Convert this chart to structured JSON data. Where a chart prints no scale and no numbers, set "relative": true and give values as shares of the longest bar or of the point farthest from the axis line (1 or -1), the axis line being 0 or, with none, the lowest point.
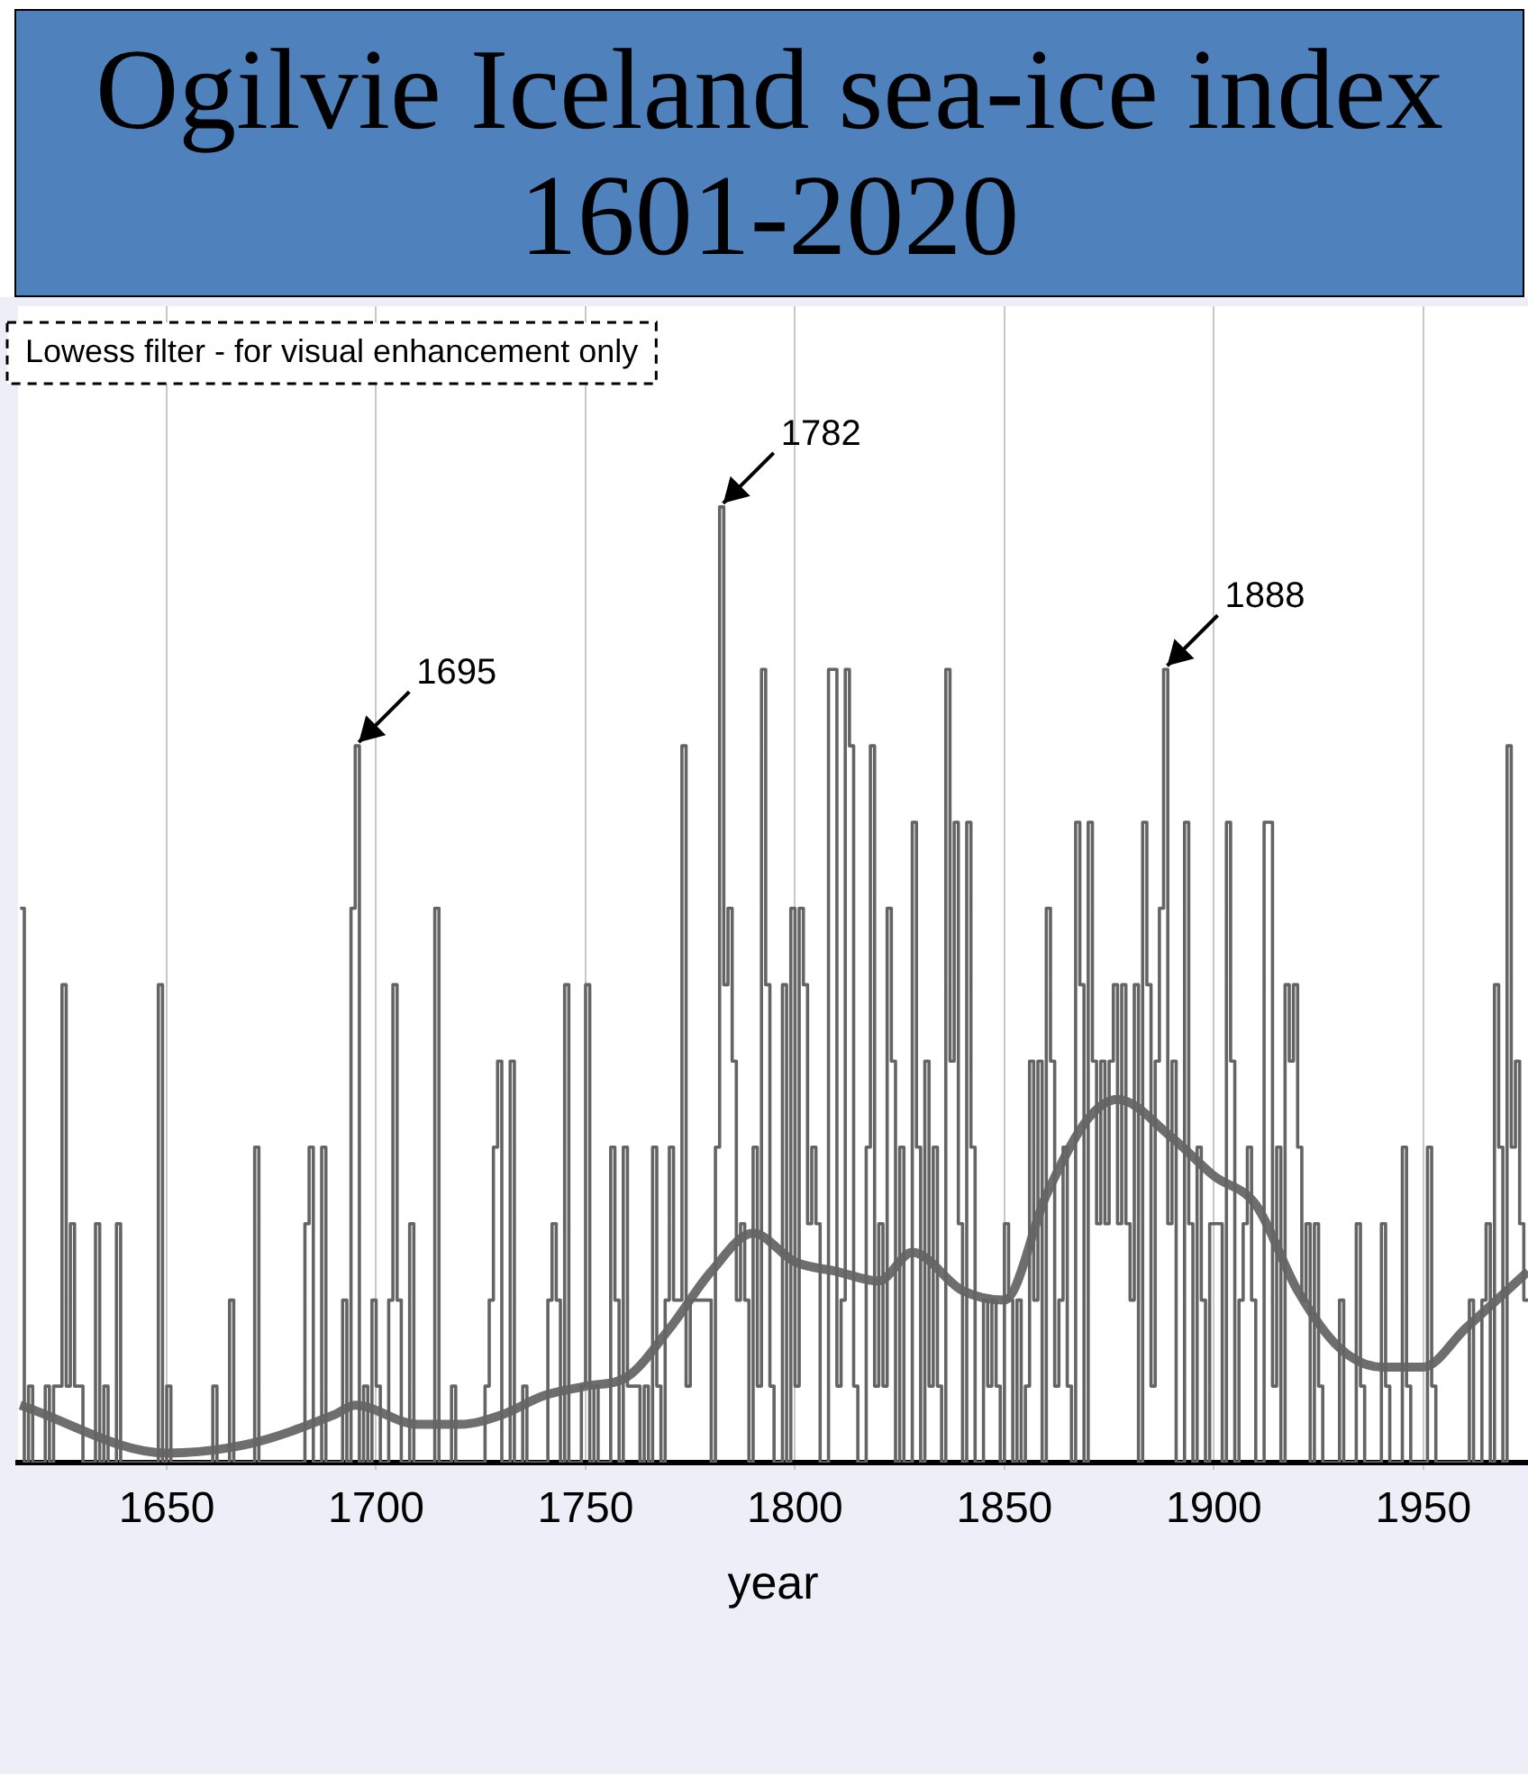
{
  "chart_data": {
    "type": "step",
    "title": "Ogilvie Iceland sea-ice index 1601-2020",
    "xlabel": "year",
    "relative": true,
    "xlim": [
      1614.5,
      1975
    ],
    "xticks": [
      1650,
      1700,
      1750,
      1800,
      1850,
      1900,
      1950
    ],
    "grid": "x",
    "tick_labels": "x",
    "marker": "none",
    "annotations": [
      "Lowess filter - for visual enhancement only",
      {
        "text": "1695",
        "x": 1695,
        "y": 0.75
      },
      {
        "text": "1782",
        "x": 1782,
        "y": 1
      },
      {
        "text": "1888",
        "x": 1888,
        "y": 0.83
      }
    ],
    "series": [
      {
        "color": "#646464",
        "x": [
          1615,
          1616,
          1617,
          1618,
          1621,
          1622,
          1623,
          1625,
          1626,
          1627,
          1628,
          1630,
          1633,
          1634,
          1635,
          1636,
          1638,
          1639,
          1648,
          1649,
          1650,
          1651,
          1661,
          1662,
          1665,
          1666,
          1671,
          1672,
          1683,
          1684,
          1685,
          1687,
          1688,
          1692,
          1693,
          1694,
          1695,
          1696,
          1697,
          1698,
          1699,
          1700,
          1701,
          1703,
          1704,
          1705,
          1706,
          1708,
          1709,
          1714,
          1715,
          1718,
          1719,
          1726,
          1727,
          1728,
          1729,
          1730,
          1732,
          1733,
          1735,
          1736,
          1741,
          1742,
          1743,
          1744,
          1745,
          1746,
          1749,
          1750,
          1751,
          1752,
          1753,
          1756,
          1757,
          1758,
          1759,
          1760,
          1763,
          1764,
          1765,
          1766,
          1767,
          1768,
          1769,
          1770,
          1771,
          1773,
          1774,
          1775,
          1780,
          1781,
          1782,
          1783,
          1784,
          1785,
          1786,
          1787,
          1788,
          1789,
          1790,
          1791,
          1792,
          1793,
          1794,
          1795,
          1797,
          1798,
          1799,
          1800,
          1801,
          1802,
          1803,
          1804,
          1805,
          1806,
          1808,
          1810,
          1811,
          1812,
          1813,
          1814,
          1815,
          1817,
          1818,
          1819,
          1820,
          1821,
          1822,
          1823,
          1824,
          1825,
          1826,
          1828,
          1829,
          1830,
          1831,
          1832,
          1833,
          1834,
          1835,
          1836,
          1837,
          1838,
          1839,
          1840,
          1841,
          1842,
          1843,
          1845,
          1846,
          1847,
          1848,
          1849,
          1850,
          1851,
          1852,
          1853,
          1854,
          1855,
          1856,
          1857,
          1858,
          1859,
          1860,
          1861,
          1862,
          1863,
          1864,
          1865,
          1866,
          1867,
          1868,
          1869,
          1870,
          1871,
          1872,
          1873,
          1874,
          1875,
          1876,
          1877,
          1878,
          1879,
          1880,
          1881,
          1882,
          1883,
          1884,
          1885,
          1886,
          1887,
          1888,
          1889,
          1890,
          1891,
          1893,
          1894,
          1895,
          1896,
          1897,
          1898,
          1899,
          1902,
          1903,
          1904,
          1905,
          1906,
          1907,
          1908,
          1909,
          1910,
          1912,
          1914,
          1915,
          1916,
          1917,
          1918,
          1919,
          1920,
          1921,
          1922,
          1923,
          1924,
          1925,
          1926,
          1930,
          1931,
          1934,
          1935,
          1936,
          1940,
          1941,
          1942,
          1945,
          1946,
          1947,
          1951,
          1952,
          1953,
          1961,
          1962,
          1964,
          1965,
          1966,
          1967,
          1968,
          1969,
          1970,
          1971,
          1972,
          1973,
          1974,
          1975
        ],
        "values": [
          0.58,
          0,
          0.08,
          0,
          0.08,
          0,
          0.08,
          0.5,
          0.08,
          0.25,
          0.08,
          0,
          0.25,
          0,
          0.08,
          0,
          0.25,
          0,
          0.5,
          0,
          0.08,
          0,
          0.08,
          0,
          0.17,
          0,
          0.33,
          0,
          0.25,
          0.33,
          0,
          0.33,
          0,
          0.17,
          0,
          0.58,
          0.75,
          0,
          0.08,
          0,
          0.17,
          0.08,
          0,
          0.17,
          0.5,
          0.17,
          0,
          0.25,
          0,
          0.58,
          0,
          0.08,
          0,
          0.08,
          0.17,
          0.33,
          0.42,
          0,
          0.42,
          0,
          0.08,
          0,
          0.17,
          0.25,
          0.17,
          0,
          0.5,
          0,
          0.08,
          0.5,
          0,
          0.08,
          0,
          0.33,
          0.17,
          0,
          0.33,
          0.08,
          0,
          0.08,
          0,
          0.33,
          0.08,
          0,
          0.17,
          0.33,
          0.17,
          0.75,
          0.08,
          0.17,
          0,
          0.33,
          1,
          0.5,
          0.58,
          0.42,
          0.17,
          0.25,
          0.17,
          0,
          0.33,
          0.08,
          0.83,
          0.5,
          0.08,
          0,
          0.5,
          0,
          0.58,
          0.08,
          0.58,
          0.5,
          0.25,
          0.33,
          0.25,
          0,
          0.83,
          0.08,
          0.17,
          0.83,
          0.75,
          0.08,
          0,
          0.33,
          0.75,
          0.08,
          0.25,
          0.08,
          0.58,
          0.42,
          0,
          0.33,
          0,
          0.67,
          0.33,
          0,
          0.42,
          0.08,
          0.33,
          0.08,
          0,
          0.83,
          0.42,
          0.67,
          0.25,
          0,
          0.67,
          0.33,
          0,
          0.17,
          0.08,
          0.17,
          0.08,
          0,
          0.25,
          0.17,
          0,
          0.17,
          0,
          0.08,
          0.42,
          0.17,
          0.42,
          0,
          0.58,
          0.42,
          0.08,
          0.17,
          0.33,
          0.08,
          0,
          0.67,
          0.5,
          0,
          0.67,
          0.42,
          0.25,
          0.42,
          0.25,
          0.42,
          0.5,
          0.25,
          0.5,
          0.25,
          0.17,
          0.5,
          0,
          0.67,
          0.5,
          0.08,
          0.42,
          0.58,
          0.83,
          0.25,
          0.42,
          0,
          0.67,
          0.25,
          0,
          0.33,
          0.17,
          0,
          0.25,
          0,
          0.67,
          0.42,
          0,
          0.17,
          0.25,
          0.33,
          0.17,
          0,
          0.67,
          0.08,
          0.33,
          0,
          0.5,
          0.42,
          0.5,
          0.33,
          0.17,
          0.25,
          0,
          0.25,
          0.08,
          0,
          0.17,
          0,
          0.25,
          0.08,
          0,
          0.25,
          0.08,
          0,
          0.33,
          0.08,
          0,
          0.33,
          0.08,
          0,
          0.17,
          0,
          0.17,
          0.25,
          0,
          0.5,
          0.33,
          0,
          0.75,
          0.33,
          0.42,
          0.25,
          0.17,
          0.17
        ]
      },
      {
        "type": "line",
        "color": "#6e6e6e",
        "x": [
          1615,
          1650,
          1670,
          1690,
          1695,
          1710,
          1720,
          1730,
          1740,
          1750,
          1760,
          1770,
          1780,
          1790,
          1800,
          1810,
          1820,
          1828,
          1840,
          1850,
          1860,
          1870,
          1877,
          1890,
          1900,
          1910,
          1920,
          1930,
          1940,
          1950,
          1960,
          1970,
          1975
        ],
        "values": [
          0.06,
          0.01,
          0.02,
          0.05,
          0.06,
          0.04,
          0.04,
          0.05,
          0.07,
          0.08,
          0.09,
          0.14,
          0.2,
          0.24,
          0.21,
          0.2,
          0.19,
          0.22,
          0.18,
          0.17,
          0.28,
          0.36,
          0.38,
          0.34,
          0.3,
          0.27,
          0.18,
          0.12,
          0.1,
          0.1,
          0.14,
          0.18,
          0.2
        ]
      }
    ]
  }
}
